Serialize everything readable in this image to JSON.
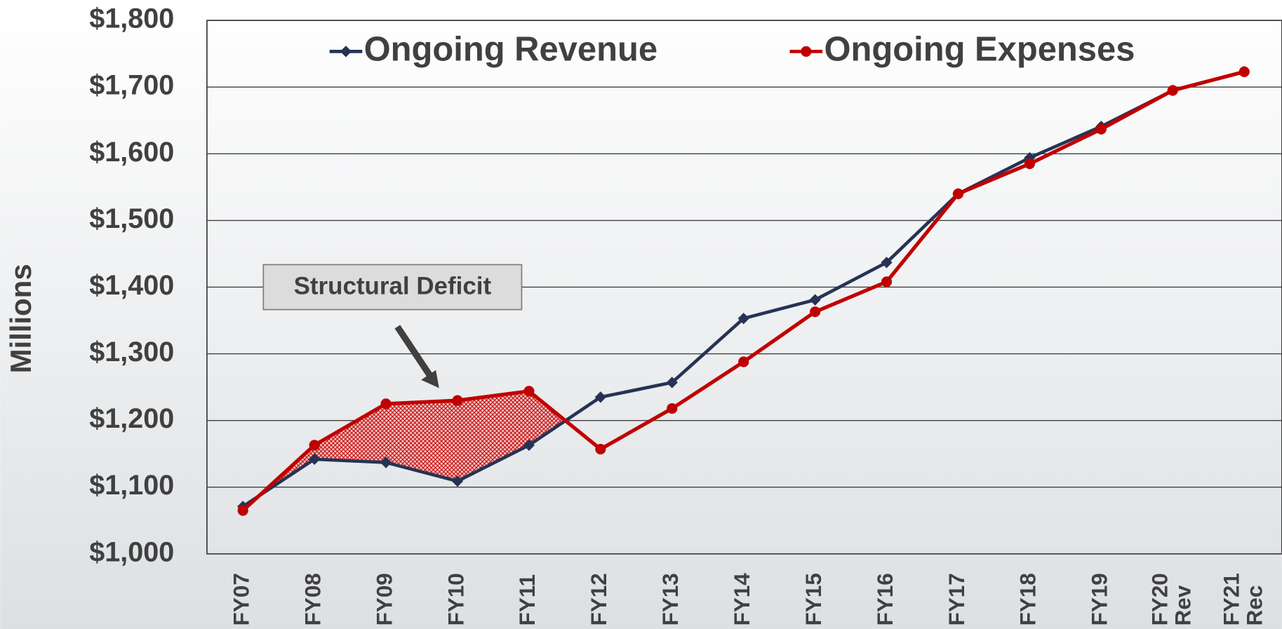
{
  "chart_data": {
    "type": "line",
    "y_axis_label": "Millions",
    "annotation": "Structural Deficit",
    "categories": [
      "FY07",
      "FY08",
      "FY09",
      "FY10",
      "FY11",
      "FY12",
      "FY13",
      "FY14",
      "FY15",
      "FY16",
      "FY17",
      "FY18",
      "FY19",
      "FY20 Rev",
      "FY21 Rec"
    ],
    "series": [
      {
        "name": "Ongoing Revenue",
        "color": "#263354",
        "marker": "diamond",
        "values": [
          1071,
          1142,
          1137,
          1109,
          1163,
          1235,
          1257,
          1353,
          1381,
          1437,
          1540,
          1594,
          1641,
          1695,
          1723
        ]
      },
      {
        "name": "Ongoing Expenses",
        "color": "#c00000",
        "marker": "circle",
        "values": [
          1065,
          1163,
          1225,
          1230,
          1244,
          1157,
          1218,
          1288,
          1363,
          1408,
          1540,
          1585,
          1637,
          1695,
          1723
        ]
      }
    ],
    "ylim": [
      1000,
      1800
    ],
    "yticks": [
      {
        "value": 1000,
        "label": "$1,000"
      },
      {
        "value": 1100,
        "label": "$1,100"
      },
      {
        "value": 1200,
        "label": "$1,200"
      },
      {
        "value": 1300,
        "label": "$1,300"
      },
      {
        "value": 1400,
        "label": "$1,400"
      },
      {
        "value": 1500,
        "label": "$1,500"
      },
      {
        "value": 1600,
        "label": "$1,600"
      },
      {
        "value": 1700,
        "label": "$1,700"
      },
      {
        "value": 1800,
        "label": "$1,800"
      }
    ],
    "grid": true,
    "legend": "top"
  }
}
